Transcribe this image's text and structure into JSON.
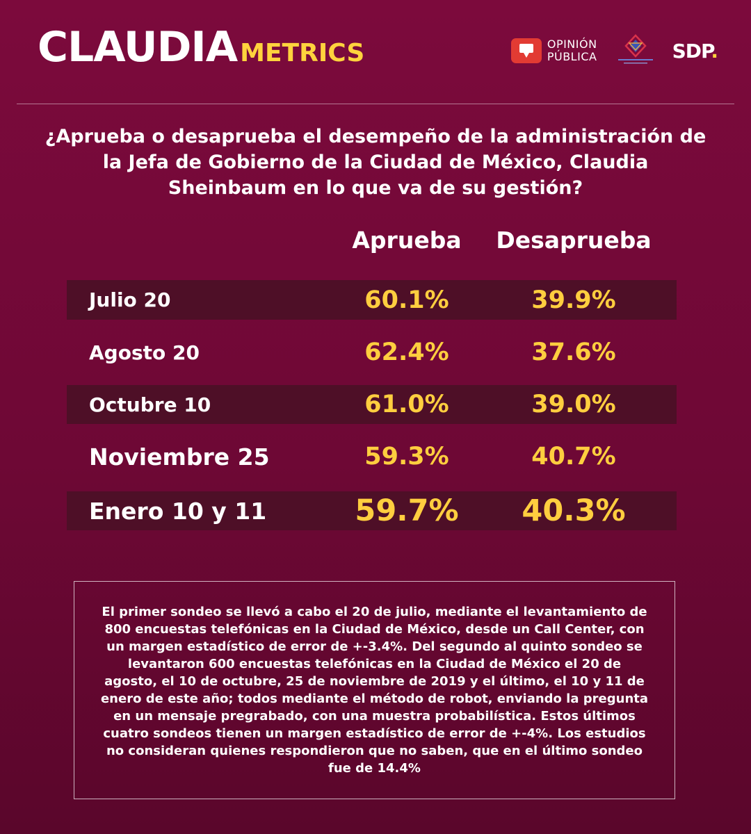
{
  "brand": {
    "main": "CLAUDIA",
    "sub": "METRICS"
  },
  "logos": {
    "opinion_line1": "OPINIÓN",
    "opinion_line2": "PÚBLICA",
    "srs_icon": "social-research-solutions-logo",
    "sdp": "SDP",
    "sdp_dot": "."
  },
  "colors": {
    "accent": "#ffce3f",
    "background": "#7c0a3c",
    "row_shade": "#4e0f27",
    "logo_red": "#e23b33"
  },
  "question": "¿Aprueba o desaprueba el desempeño de la administración de la Jefa de Gobierno de la Ciudad de México, Claudia Sheinbaum en lo que va de su gestión?",
  "chart_data": {
    "type": "table",
    "columns": [
      "Aprueba",
      "Desaprueba"
    ],
    "rows": [
      {
        "label": "Julio 20",
        "aprueba": "60.1%",
        "desaprueba": "39.9%"
      },
      {
        "label": "Agosto 20",
        "aprueba": "62.4%",
        "desaprueba": "37.6%"
      },
      {
        "label": "Octubre 10",
        "aprueba": "61.0%",
        "desaprueba": "39.0%"
      },
      {
        "label": "Noviembre 25",
        "aprueba": "59.3%",
        "desaprueba": "40.7%"
      },
      {
        "label": "Enero 10 y 11",
        "aprueba": "59.7%",
        "desaprueba": "40.3%"
      }
    ]
  },
  "note": "El primer sondeo se llevó a cabo el 20 de julio, mediante el levantamiento de 800 encuestas telefónicas en la Ciudad de México, desde un Call Center, con un margen estadístico de error de +-3.4%. Del segundo al quinto sondeo se levantaron 600 encuestas telefónicas en la Ciudad de México el 20 de agosto, el 10 de octubre, 25 de noviembre de 2019 y el último, el 10 y 11 de enero de este año; todos mediante el método de robot, enviando la pregunta en un mensaje pregrabado, con una muestra probabilística. Estos últimos cuatro sondeos tienen un margen estadístico de error de +-4%. Los estudios no consideran quienes respondieron que no saben, que en el último sondeo fue de 14.4%"
}
